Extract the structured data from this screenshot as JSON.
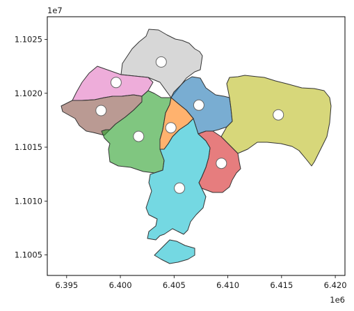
{
  "chart_data": {
    "type": "map",
    "title": "",
    "xlabel": "",
    "ylabel": "",
    "x_offset_label": "1e6",
    "y_offset_label": "1e7",
    "xlim": [
      6.3932,
      6.4209
    ],
    "ylim": [
      1.10031,
      1.10271
    ],
    "x_ticks": [
      "6.395",
      "6.400",
      "6.405",
      "6.410",
      "6.415",
      "6.420"
    ],
    "x_tick_values": [
      6.395,
      6.4,
      6.405,
      6.41,
      6.415,
      6.42
    ],
    "y_ticks": [
      "1.1005",
      "1.1010",
      "1.1015",
      "1.1020",
      "1.1025"
    ],
    "y_tick_values": [
      1.1005,
      1.101,
      1.1015,
      1.102,
      1.1025
    ],
    "grid": false,
    "legend": "none",
    "fill_opacity": 0.6,
    "districts": [
      {
        "color": "#bdbdbd",
        "centroid": [
          6.4038,
          1.10229
        ]
      },
      {
        "color": "#e377c2",
        "centroid": [
          6.3996,
          1.1021
        ]
      },
      {
        "color": "#1f77b4",
        "centroid": [
          6.4073,
          1.10189
        ]
      },
      {
        "color": "#bcbd22",
        "centroid": [
          6.4147,
          1.1018
        ]
      },
      {
        "color": "#8c564b",
        "centroid": [
          6.3982,
          1.10184
        ]
      },
      {
        "color": "#2ca02c",
        "centroid": [
          6.4017,
          1.1016
        ]
      },
      {
        "color": "#ff7f0e",
        "centroid": [
          6.4047,
          1.10168
        ]
      },
      {
        "color": "#d62728",
        "centroid": [
          6.4094,
          1.10135
        ]
      },
      {
        "color": "#17becf",
        "centroid": [
          6.4055,
          1.10112
        ]
      }
    ]
  }
}
